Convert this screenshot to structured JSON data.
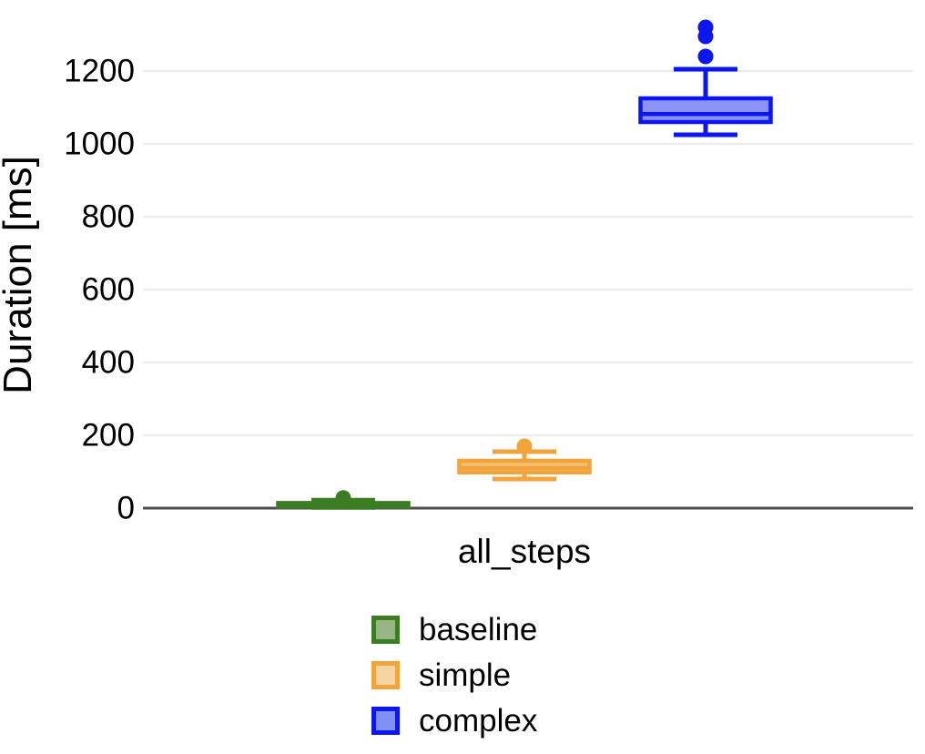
{
  "page": {
    "background": "#ffffff"
  },
  "chart_data": {
    "type": "boxplot",
    "title": "",
    "categories": [
      "all_steps"
    ],
    "ylabel": "Duration [ms]",
    "y_ticks": [
      0,
      200,
      400,
      600,
      800,
      1000,
      1200
    ],
    "ylim": [
      0,
      1390
    ],
    "grid": true,
    "legend_position": "bottom-center",
    "colors": {
      "grid": "#ececec",
      "axis_line": "#4d4d4d",
      "text": "#000000"
    },
    "series": [
      {
        "name": "baseline",
        "stroke": "#3a7d22",
        "fill": "#9ab488",
        "legend_fill": "#9ab488",
        "whisker_low": 2,
        "q1": 4,
        "median": 10,
        "q3": 14,
        "whisker_high": 22,
        "outliers": [
          28
        ]
      },
      {
        "name": "simple",
        "stroke": "#f1a33c",
        "fill": "#f6bf70",
        "legend_fill": "#f6d4a4",
        "whisker_low": 80,
        "q1": 98,
        "median": 110,
        "q3": 130,
        "whisker_high": 155,
        "outliers": [
          170
        ]
      },
      {
        "name": "complex",
        "stroke": "#0c16f0",
        "fill": "#8b94f3",
        "legend_fill": "#8190f5",
        "whisker_low": 1025,
        "q1": 1060,
        "median": 1082,
        "q3": 1125,
        "whisker_high": 1205,
        "outliers": [
          1240,
          1295,
          1320
        ]
      }
    ]
  }
}
